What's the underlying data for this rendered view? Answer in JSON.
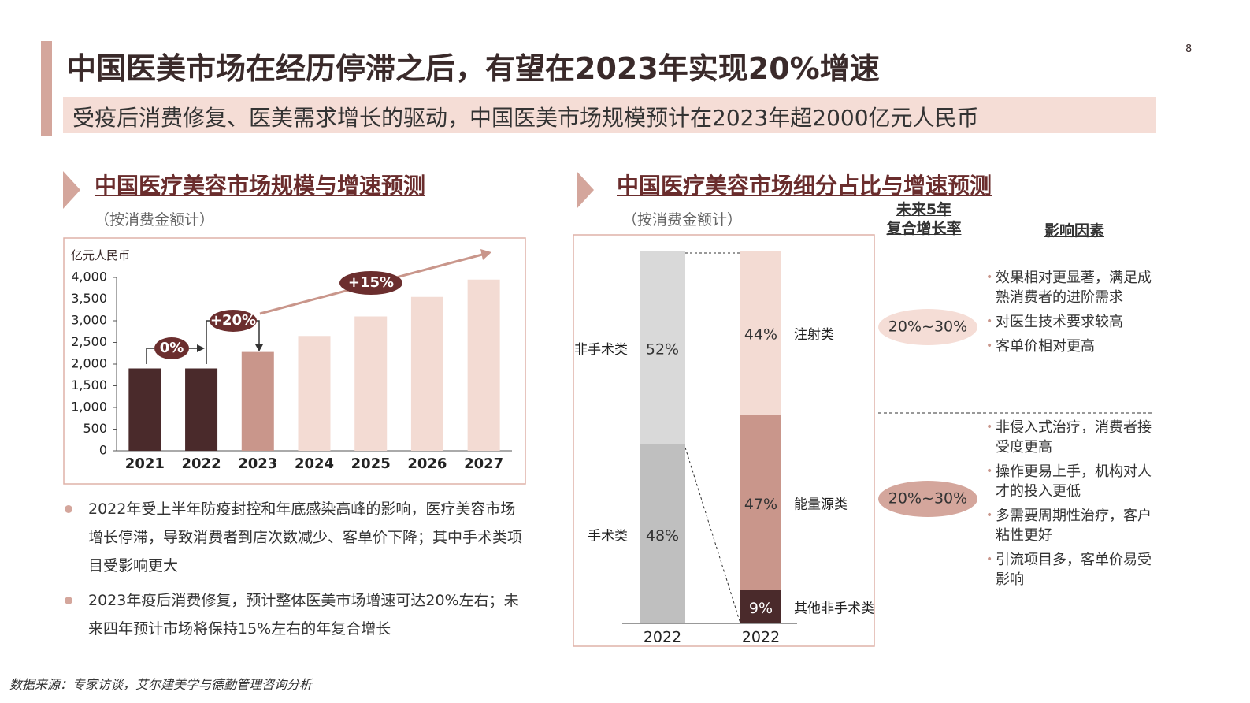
{
  "page_number": "8",
  "title": "中国医美市场在经历停滞之后，有望在2023年实现20%增速",
  "subtitle": "受疫后消费修复、医美需求增长的驱动，中国医美市场规模预计在2023年超2000亿元人民币",
  "chart_data": [
    {
      "type": "bar",
      "title": "中国医疗美容市场规模与增速预测",
      "subtitle": "（按消费金额计）",
      "y_label": "亿元人民币",
      "categories": [
        "2021",
        "2022",
        "2023",
        "2024",
        "2025",
        "2026",
        "2027"
      ],
      "values": [
        1900,
        1900,
        2280,
        2650,
        3100,
        3550,
        3950
      ],
      "colors": [
        "#4a2a2b",
        "#4a2a2b",
        "#c9968b",
        "#f3dbd3",
        "#f3dbd3",
        "#f3dbd3",
        "#f3dbd3"
      ],
      "ylim": [
        0,
        4000
      ],
      "yticks": [
        0,
        500,
        {
          "value": 1000,
          "label": "1,000"
        },
        {
          "value": 1500,
          "label": "1,500"
        },
        {
          "value": 2000,
          "label": "2,000"
        },
        {
          "value": 2500,
          "label": "2,500"
        },
        {
          "value": 3000,
          "label": "3,000"
        },
        {
          "value": 3500,
          "label": "3,500"
        },
        {
          "value": 4000,
          "label": "4,000"
        }
      ],
      "annotations": [
        "0%",
        "+20%",
        "+15%"
      ]
    },
    {
      "type": "stacked_bar",
      "title": "中国医疗美容市场细分占比与增速预测",
      "subtitle": "（按消费金额计）",
      "categories": [
        "2022",
        "2022"
      ],
      "ylim": [
        0,
        100
      ],
      "series": [
        {
          "name": "手术类",
          "color": "#bfbfbf",
          "values": [
            48,
            null
          ],
          "value_labels": [
            "48%",
            null
          ]
        },
        {
          "name": "非手术类",
          "color": "#d9d9d9",
          "values": [
            52,
            null
          ],
          "value_labels": [
            "52%",
            null
          ]
        },
        {
          "name": "其他非手术类",
          "color": "#4a2a2b",
          "values": [
            null,
            9
          ],
          "value_labels": [
            null,
            "9%"
          ]
        },
        {
          "name": "能量源类",
          "color": "#c9968b",
          "values": [
            null,
            47
          ],
          "value_labels": [
            null,
            "47%"
          ]
        },
        {
          "name": "注射类",
          "color": "#f3dbd3",
          "values": [
            null,
            44
          ],
          "value_labels": [
            null,
            "44%"
          ]
        }
      ]
    }
  ],
  "growth_table": {
    "headers": {
      "cagr": [
        "未来5年",
        "复合增长率"
      ],
      "factors": "影响因素"
    },
    "rows": [
      {
        "cagr": "20%~30%",
        "factors": [
          "效果相对更显著，满足成熟消费者的进阶需求",
          "对医生技术要求较高",
          "客单价相对更高"
        ]
      },
      {
        "cagr": "20%~30%",
        "factors": [
          "非侵入式治疗，消费者接受度更高",
          "操作更易上手，机构对人才的投入更低",
          "多需要周期性治疗，客户粘性更好",
          "引流项目多，客单价易受影响"
        ]
      }
    ]
  },
  "notes": [
    "2022年受上半年防疫封控和年底感染高峰的影响，医疗美容市场增长停滞，导致消费者到店次数减少、客单价下降；其中手术类项目受影响更大",
    "2023年疫后消费修复，预计整体医美市场增速可达20%左右；未来四年预计市场将保持15%左右的年复合增长"
  ],
  "source": "数据来源：专家访谈，艾尔建美学与德勤管理咨询分析"
}
